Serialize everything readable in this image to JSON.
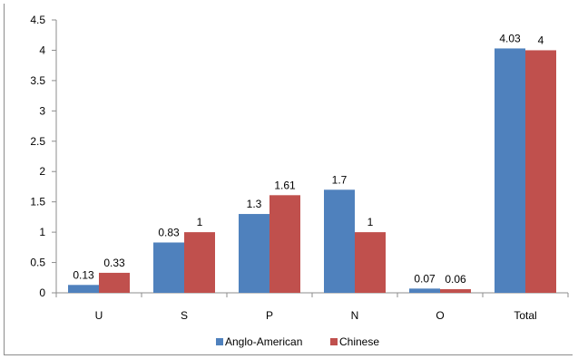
{
  "chart_data": {
    "type": "bar",
    "categories": [
      "U",
      "S",
      "P",
      "N",
      "O",
      "Total"
    ],
    "series": [
      {
        "name": "Anglo-American",
        "color": "#4f81bd",
        "values": [
          0.13,
          0.83,
          1.3,
          1.7,
          0.07,
          4.03
        ],
        "labels": [
          "0.13",
          "0.83",
          "1.3",
          "1.7",
          "0.07",
          "4.03"
        ]
      },
      {
        "name": "Chinese",
        "color": "#c0504d",
        "values": [
          0.33,
          1,
          1.61,
          1,
          0.06,
          4
        ],
        "labels": [
          "0.33",
          "1",
          "1.61",
          "1",
          "0.06",
          "4"
        ]
      }
    ],
    "yticks": [
      "0",
      "0.5",
      "1",
      "1.5",
      "2",
      "2.5",
      "3",
      "3.5",
      "4",
      "4.5"
    ],
    "ylim": [
      0,
      4.5
    ],
    "title": "",
    "xlabel": "",
    "ylabel": "",
    "legend_position": "bottom",
    "grid": false
  }
}
